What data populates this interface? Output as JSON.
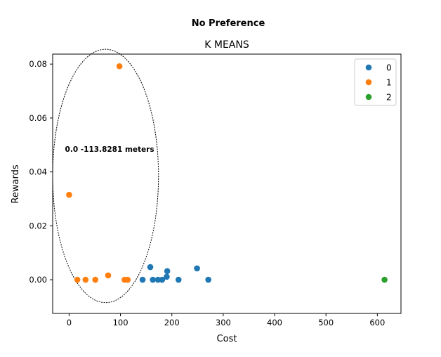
{
  "suptitle": "No Preference",
  "chart_data": {
    "type": "scatter",
    "title": "K MEANS",
    "xlabel": "Cost",
    "ylabel": "Rewards",
    "xlim": [
      -32,
      646
    ],
    "ylim": [
      -0.0125,
      0.0837
    ],
    "xticks": [
      0,
      100,
      200,
      300,
      400,
      500,
      600
    ],
    "yticks": [
      0.0,
      0.02,
      0.04,
      0.06,
      0.08
    ],
    "ytick_labels": [
      "0.00",
      "0.02",
      "0.04",
      "0.06",
      "0.08"
    ],
    "grid": false,
    "legend": "top-right",
    "series": [
      {
        "name": "0",
        "color": "#1f77b4",
        "points": [
          [
            143,
            0.0
          ],
          [
            158,
            0.0047
          ],
          [
            163,
            0.0
          ],
          [
            173,
            0.0
          ],
          [
            181,
            0.0
          ],
          [
            190,
            0.0011
          ],
          [
            191,
            0.0032
          ],
          [
            213,
            0.0
          ],
          [
            249,
            0.0042
          ],
          [
            271,
            0.0
          ]
        ]
      },
      {
        "name": "1",
        "color": "#ff7f0e",
        "points": [
          [
            0,
            0.0315
          ],
          [
            16,
            0.0
          ],
          [
            32,
            0.0
          ],
          [
            51,
            0.0
          ],
          [
            76,
            0.0016
          ],
          [
            98,
            0.0792
          ],
          [
            108,
            0.0
          ],
          [
            114,
            0.0
          ]
        ]
      },
      {
        "name": "2",
        "color": "#2ca02c",
        "points": [
          [
            614,
            0.0
          ]
        ]
      }
    ],
    "annotation": {
      "text": "0.0 -113.8281 meters",
      "x": -8,
      "y": 0.0475
    },
    "ellipse": {
      "cx": 71,
      "cy": 0.0385,
      "rx": 103,
      "ry": 0.047
    }
  }
}
